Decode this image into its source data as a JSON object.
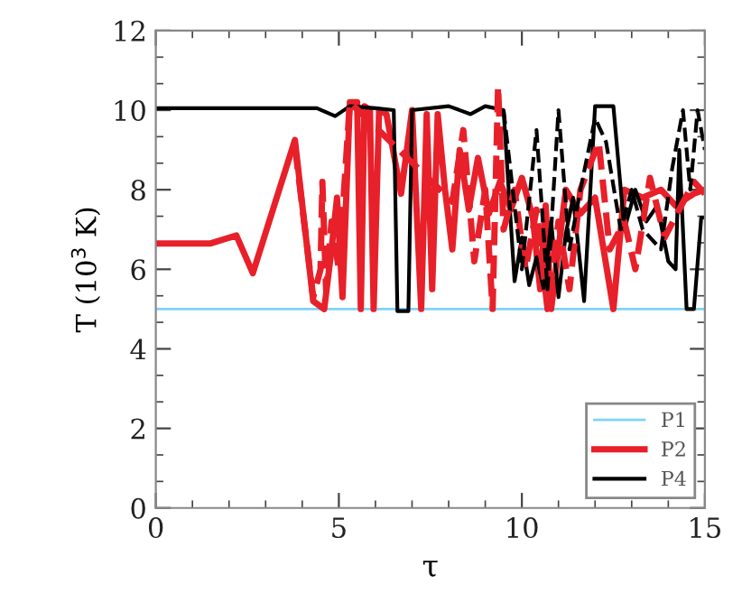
{
  "chart_data": {
    "type": "line",
    "xlabel": "τ",
    "ylabel": "T (10$^{3}$ K)",
    "xlim": [
      0,
      15
    ],
    "ylim": [
      0,
      12
    ],
    "xticks": [
      0,
      5,
      10,
      15
    ],
    "yticks": [
      0,
      2,
      4,
      6,
      8,
      10,
      12
    ],
    "grid": false,
    "legend": "bottom right",
    "marker": "none",
    "series": [
      {
        "name": "P1",
        "color": "#7fd3f7",
        "line_style": "solid",
        "x": [
          0,
          15
        ],
        "values": [
          5,
          5
        ]
      },
      {
        "name": "P2",
        "color": "#e8202a",
        "line_style": "solid",
        "x": [
          0,
          1.5,
          2.2,
          2.65,
          3.8,
          4.3,
          4.6,
          4.8,
          4.95,
          5.1,
          5.3,
          5.5,
          5.6,
          5.7,
          5.85,
          5.95,
          6.1,
          6.3,
          6.7,
          7.0,
          7.25,
          7.4,
          7.55,
          7.7,
          7.9,
          8.1,
          8.3,
          8.55,
          8.8,
          9.1,
          9.4,
          9.7,
          10.0,
          10.3,
          10.5,
          10.65,
          10.8,
          11.2,
          11.6,
          12.0,
          12.5,
          12.8,
          13.3,
          13.8,
          14.2,
          14.7,
          15
        ],
        "values": [
          6.65,
          6.65,
          6.85,
          5.9,
          9.25,
          5.2,
          5.0,
          6.5,
          7.8,
          5.3,
          10.2,
          10.2,
          5.0,
          10.1,
          10.0,
          5.0,
          10.0,
          9.9,
          7.9,
          10.0,
          5.0,
          9.9,
          5.5,
          9.9,
          8.0,
          6.5,
          9.0,
          7.5,
          8.8,
          7.4,
          8.2,
          7.5,
          8.3,
          7.3,
          5.5,
          7.6,
          5.0,
          8.0,
          7.4,
          7.8,
          5.0,
          8.0,
          7.8,
          8.0,
          7.6,
          7.9,
          8.0
        ]
      },
      {
        "name": "P4",
        "color": "#000000",
        "line_style": "solid",
        "x": [
          0,
          4.4,
          4.9,
          5.3,
          6.0,
          6.5,
          6.6,
          6.9,
          7.0,
          8.0,
          8.6,
          9.0,
          9.5,
          9.8,
          10.0,
          10.2,
          10.4,
          10.6,
          10.8,
          11.0,
          11.2,
          11.4,
          11.7,
          12.0,
          12.5,
          12.8,
          13.1,
          13.4,
          13.7,
          14.0,
          14.2,
          14.3,
          14.5,
          14.7,
          14.9,
          15
        ],
        "values": [
          10.05,
          10.05,
          9.85,
          10.1,
          10.05,
          10.0,
          4.95,
          4.95,
          10.0,
          10.1,
          9.9,
          10.1,
          10.0,
          5.7,
          6.8,
          5.6,
          6.3,
          5.5,
          7.2,
          5.3,
          6.9,
          7.8,
          5.2,
          10.1,
          10.1,
          7.0,
          8.0,
          7.2,
          7.6,
          6.2,
          6.0,
          9.0,
          5.0,
          5.0,
          7.3,
          7.3
        ]
      },
      {
        "color": "#e8202a",
        "line_style": "dashed",
        "x": [
          3.8,
          4.3,
          4.5,
          4.55,
          4.65,
          4.8,
          5.0,
          5.3,
          8.1,
          8.4,
          8.7,
          9.0,
          9.2,
          9.35,
          9.5,
          9.8,
          10.1,
          10.4,
          10.7,
          11.0,
          11.3,
          11.6,
          12.1,
          12.4,
          12.8,
          13.1,
          13.5,
          13.9,
          14.3,
          14.7,
          15
        ],
        "values": [
          9.1,
          5.3,
          6.0,
          8.2,
          5.5,
          7.2,
          6.0,
          10.2,
          7.7,
          9.5,
          6.2,
          8.0,
          5.0,
          10.6,
          7.0,
          8.0,
          6.0,
          7.5,
          5.0,
          7.2,
          5.5,
          8.0,
          9.2,
          6.5,
          7.2,
          6.0,
          8.3,
          6.8,
          7.5,
          8.2,
          7.9
        ]
      },
      {
        "color": "#000000",
        "line_style": "dashed",
        "x": [
          9.5,
          10.0,
          10.4,
          10.7,
          11.0,
          11.3,
          11.6,
          12.0,
          12.3,
          12.7,
          13.0,
          13.3,
          13.8,
          14.1,
          14.4,
          14.6,
          14.8,
          15
        ],
        "values": [
          10.0,
          6.0,
          9.5,
          5.5,
          10.0,
          6.5,
          8.0,
          9.8,
          9.2,
          7.0,
          8.0,
          7.0,
          6.5,
          8.5,
          10.0,
          8.0,
          10.0,
          9.0
        ]
      }
    ]
  }
}
